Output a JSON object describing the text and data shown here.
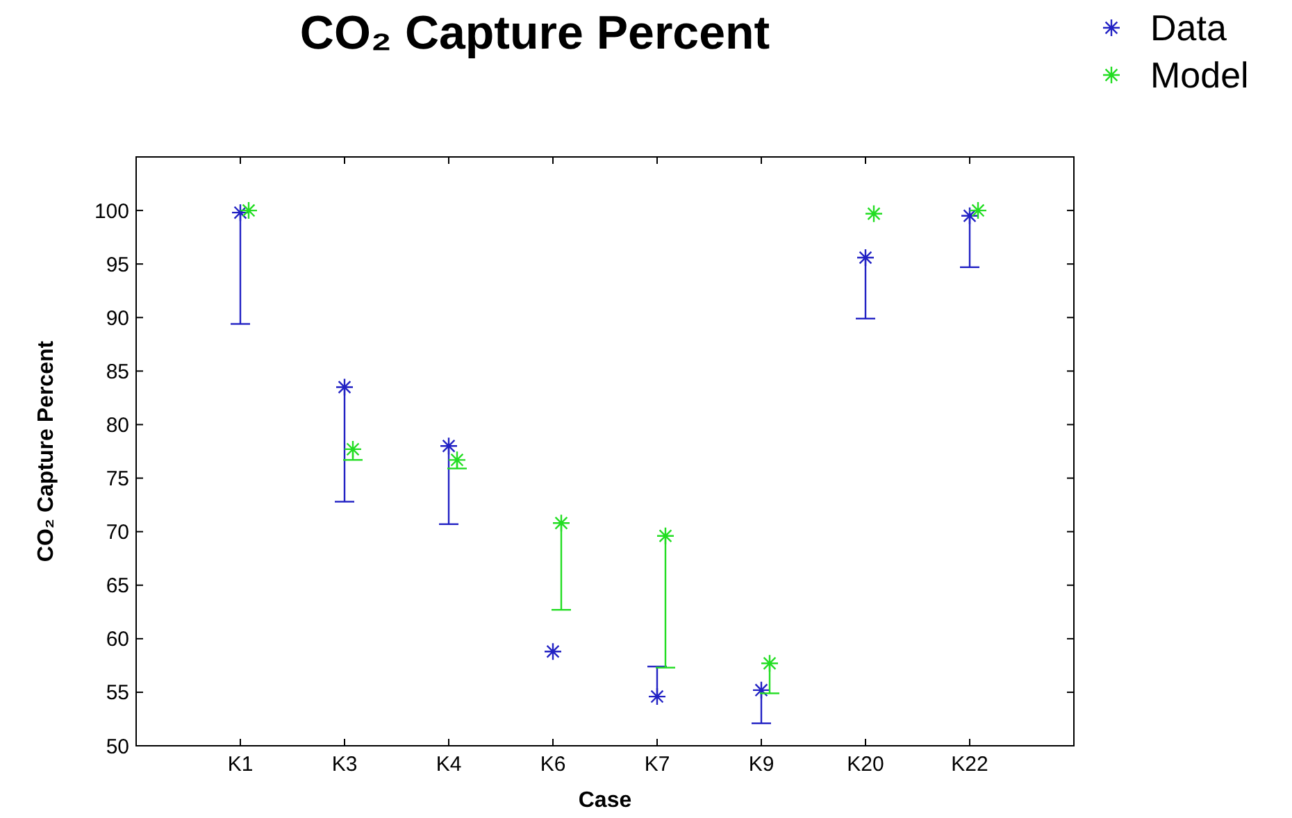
{
  "chart_data": {
    "type": "scatter",
    "title": "CO₂ Capture Percent",
    "xlabel": "Case",
    "ylabel": "CO₂ Capture Percent",
    "categories": [
      "K1",
      "K3",
      "K4",
      "K6",
      "K7",
      "K9",
      "K20",
      "K22"
    ],
    "series": [
      {
        "name": "Data",
        "color": "#2222c4",
        "values": [
          99.8,
          83.5,
          78.0,
          58.8,
          54.6,
          55.2,
          95.6,
          99.5
        ],
        "errors": [
          [
            89.4,
            99.8
          ],
          [
            72.8,
            83.5
          ],
          [
            70.7,
            78.0
          ],
          null,
          [
            54.6,
            57.4
          ],
          [
            52.1,
            55.2
          ],
          [
            89.9,
            95.6
          ],
          [
            94.7,
            99.5
          ]
        ]
      },
      {
        "name": "Model",
        "color": "#22dd22",
        "values": [
          100.0,
          77.7,
          76.7,
          70.8,
          69.6,
          57.7,
          99.7,
          100.0
        ],
        "errors": [
          null,
          [
            76.7,
            77.7
          ],
          [
            75.9,
            76.7
          ],
          [
            62.7,
            70.8
          ],
          [
            57.3,
            69.6
          ],
          [
            54.9,
            57.7
          ],
          null,
          null
        ]
      }
    ],
    "ylim": [
      50,
      105
    ],
    "yticks": [
      50,
      55,
      60,
      65,
      70,
      75,
      80,
      85,
      90,
      95,
      100
    ],
    "grid": false,
    "legend": "top right",
    "marker": "cross"
  }
}
